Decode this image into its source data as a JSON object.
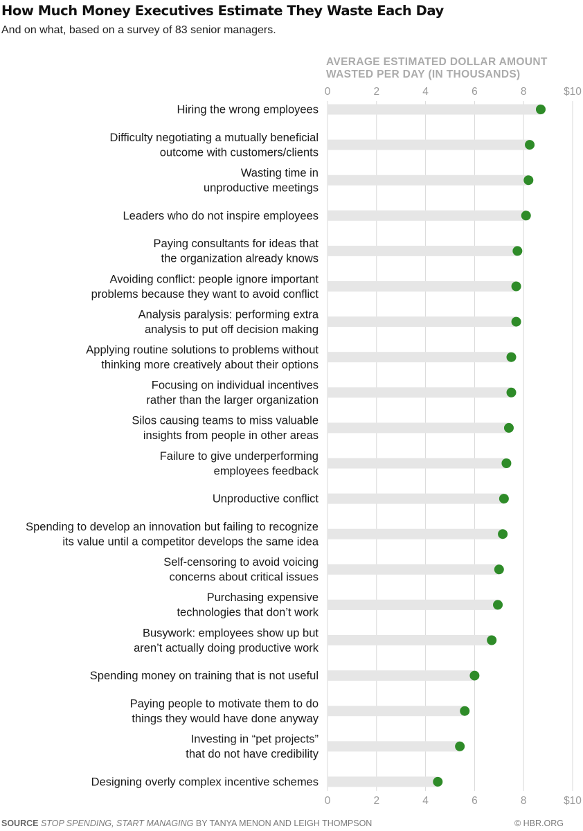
{
  "header": {
    "title": "How Much Money Executives Estimate They Waste Each Day",
    "subtitle": "And on what, based on a survey of 83 senior managers."
  },
  "footer": {
    "source_label": "SOURCE",
    "source_book": "STOP SPENDING, START MANAGING",
    "source_authors": "BY TANYA MENON AND LEIGH THOMPSON",
    "brand": "© HBR.ORG"
  },
  "colors": {
    "dot": "#2e8b28",
    "bar": "#e6e6e6",
    "gridline": "#d9d9d9",
    "tick_label": "#9a9a9a",
    "axis_title": "#ababab"
  },
  "chart_data": {
    "type": "dot",
    "title": "How Much Money Executives Estimate They Waste Each Day",
    "subtitle": "And on what, based on a survey of 83 senior managers.",
    "xlabel_lines": [
      "AVERAGE ESTIMATED DOLLAR AMOUNT",
      "WASTED PER DAY (IN THOUSANDS)"
    ],
    "xlim": [
      0,
      10
    ],
    "xticks": [
      0,
      2,
      4,
      6,
      8,
      10
    ],
    "xtick_labels": [
      "0",
      "2",
      "4",
      "6",
      "8",
      "$10"
    ],
    "grid": true,
    "axis_ticks_top_and_bottom": true,
    "categories": [
      [
        "Hiring the wrong employees"
      ],
      [
        "Difficulty negotiating a mutually beneficial",
        "outcome with customers/clients"
      ],
      [
        "Wasting time in",
        "unproductive meetings"
      ],
      [
        "Leaders who do not inspire employees"
      ],
      [
        "Paying consultants for ideas that",
        "the organization already knows"
      ],
      [
        "Avoiding conflict: people ignore important",
        "problems because they want to avoid conflict"
      ],
      [
        "Analysis paralysis: performing extra",
        "analysis to put off decision making"
      ],
      [
        "Applying routine solutions to problems without",
        "thinking more creatively about their options"
      ],
      [
        "Focusing on individual incentives",
        "rather than the larger organization"
      ],
      [
        "Silos causing teams to miss valuable",
        "insights from people in other areas"
      ],
      [
        "Failure to give underperforming",
        "employees feedback"
      ],
      [
        "Unproductive conflict"
      ],
      [
        "Spending to develop an innovation but failing to recognize",
        "its value until a competitor develops the same idea"
      ],
      [
        "Self-censoring to avoid voicing",
        "concerns about critical issues"
      ],
      [
        "Purchasing expensive",
        "technologies that don’t work"
      ],
      [
        "Busywork: employees show up but",
        "aren’t actually doing productive work"
      ],
      [
        "Spending money on training that is not useful"
      ],
      [
        "Paying people to motivate them to do",
        "things they would have done anyway"
      ],
      [
        "Investing in “pet projects”",
        "that do not have credibility"
      ],
      [
        "Designing overly complex incentive schemes"
      ]
    ],
    "values": [
      8.7,
      8.25,
      8.2,
      8.1,
      7.75,
      7.7,
      7.7,
      7.5,
      7.5,
      7.4,
      7.3,
      7.2,
      7.15,
      7.0,
      6.95,
      6.7,
      6.0,
      5.6,
      5.4,
      4.5
    ]
  }
}
